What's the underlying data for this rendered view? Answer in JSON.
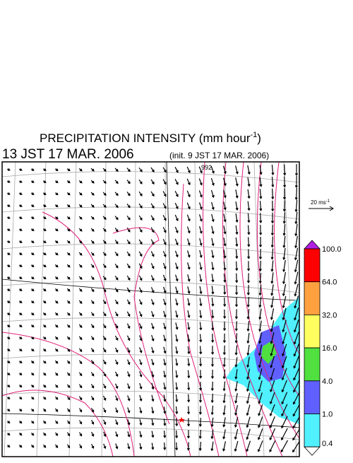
{
  "title": {
    "text": "PRECIPITATION INTENSITY (mm hour",
    "superscript": "-1",
    "close": ")"
  },
  "subtitle": {
    "time": "13 JST 17 MAR. 2006",
    "init": "(init. 9 JST 17 MAR. 2006)"
  },
  "vector_legend": {
    "text": "20 ms",
    "superscript": "-1"
  },
  "contour_label": "992",
  "colorbar": {
    "labels": [
      "100.0",
      "64.0",
      "32.0",
      "16.0",
      "4.0",
      "1.0",
      "0.4"
    ],
    "colors": [
      "#ff0000",
      "#ffa040",
      "#ffff60",
      "#50e040",
      "#6060ff",
      "#50f0ff"
    ],
    "over_color": "#b020e0",
    "under_color": "#ffffff"
  }
}
